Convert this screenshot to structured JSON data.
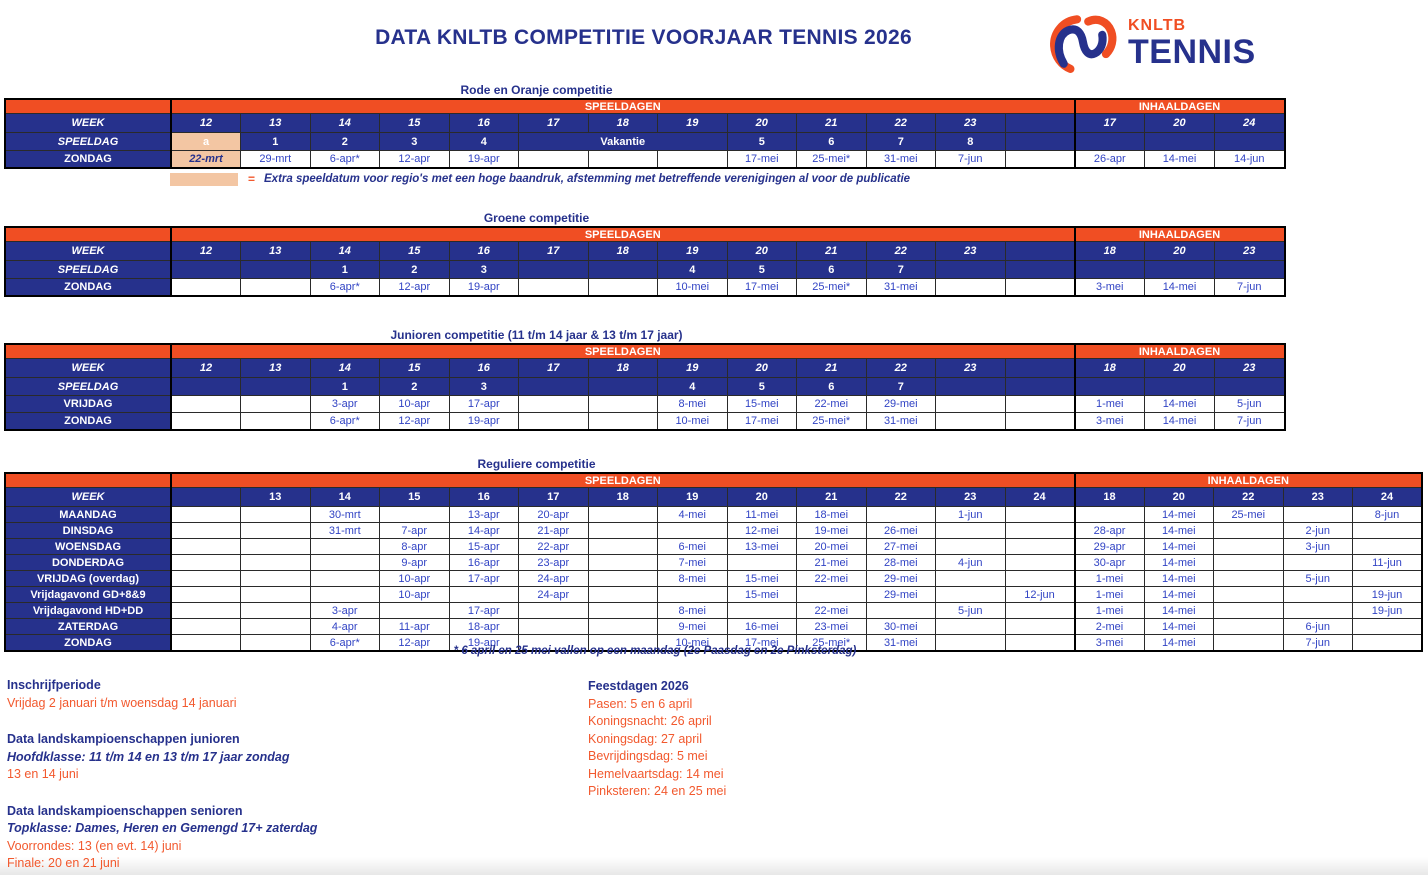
{
  "title": "DATA KNLTB COMPETITIE VOORJAAR TENNIS 2026",
  "logo": {
    "top": "KNLTB",
    "bottom": "TENNIS"
  },
  "colors": {
    "accent_orange": "#F04E23",
    "navy_blue": "#26318C",
    "date_blue": "#3143C4",
    "highlight_peach": "#F3C6A3",
    "footer_orange": "#F2592E"
  },
  "tables": [
    {
      "title": "Rode en Oranje competitie",
      "speeldagen_label": "SPEELDAGEN",
      "inhaaldagen_label": "INHAALDAGEN",
      "week_label": "WEEK",
      "week_italic": true,
      "weeks": [
        "12",
        "13",
        "14",
        "15",
        "16",
        "17",
        "18",
        "19",
        "20",
        "21",
        "22",
        "23",
        ""
      ],
      "inhaal_weeks": [
        "17",
        "20",
        "24"
      ],
      "speeldag_row": {
        "label": "SPEELDAG",
        "cells": [
          {
            "t": "a",
            "hl": true
          },
          "1",
          "2",
          "3",
          "4",
          {
            "t": "Vakantie",
            "span": 3
          },
          "5",
          "6",
          "7",
          "8",
          ""
        ],
        "inhaal": [
          "",
          "",
          ""
        ]
      },
      "day_rows": [
        {
          "label": "ZONDAG",
          "cells": [
            {
              "t": "22-mrt",
              "hl": true
            },
            "29-mrt",
            "6-apr*",
            "12-apr",
            "19-apr",
            "",
            "",
            "",
            "17-mei",
            "25-mei*",
            "31-mei",
            "7-jun",
            ""
          ],
          "inhaal": [
            "26-apr",
            "14-mei",
            "14-jun"
          ]
        }
      ],
      "legend": {
        "symbol": "=",
        "text": "Extra speeldatum voor regio's met een hoge baandruk, afstemming met betreffende verenigingen al voor de publicatie"
      }
    },
    {
      "title": "Groene competitie",
      "speeldagen_label": "SPEELDAGEN",
      "inhaaldagen_label": "INHAALDAGEN",
      "week_label": "WEEK",
      "week_italic": true,
      "weeks": [
        "12",
        "13",
        "14",
        "15",
        "16",
        "17",
        "18",
        "19",
        "20",
        "21",
        "22",
        "23",
        ""
      ],
      "inhaal_weeks": [
        "18",
        "20",
        "23"
      ],
      "speeldag_row": {
        "label": "SPEELDAG",
        "cells": [
          "",
          "",
          "1",
          "2",
          "3",
          "",
          "",
          "4",
          "5",
          "6",
          "7",
          "",
          ""
        ],
        "inhaal": [
          "",
          "",
          ""
        ]
      },
      "day_rows": [
        {
          "label": "ZONDAG",
          "cells": [
            "",
            "",
            "6-apr*",
            "12-apr",
            "19-apr",
            "",
            "",
            "10-mei",
            "17-mei",
            "25-mei*",
            "31-mei",
            "",
            ""
          ],
          "inhaal": [
            "3-mei",
            "14-mei",
            "7-jun"
          ]
        }
      ]
    },
    {
      "title": "Junioren competitie (11 t/m 14 jaar & 13 t/m 17 jaar)",
      "speeldagen_label": "SPEELDAGEN",
      "inhaaldagen_label": "INHAALDAGEN",
      "week_label": "WEEK",
      "week_italic": true,
      "weeks": [
        "12",
        "13",
        "14",
        "15",
        "16",
        "17",
        "18",
        "19",
        "20",
        "21",
        "22",
        "23",
        ""
      ],
      "inhaal_weeks": [
        "18",
        "20",
        "23"
      ],
      "speeldag_row": {
        "label": "SPEELDAG",
        "cells": [
          "",
          "",
          "1",
          "2",
          "3",
          "",
          "",
          "4",
          "5",
          "6",
          "7",
          "",
          ""
        ],
        "inhaal": [
          "",
          "",
          ""
        ]
      },
      "day_rows": [
        {
          "label": "VRIJDAG",
          "cells": [
            "",
            "",
            "3-apr",
            "10-apr",
            "17-apr",
            "",
            "",
            "8-mei",
            "15-mei",
            "22-mei",
            "29-mei",
            "",
            ""
          ],
          "inhaal": [
            "1-mei",
            "14-mei",
            "5-jun"
          ]
        },
        {
          "label": "ZONDAG",
          "cells": [
            "",
            "",
            "6-apr*",
            "12-apr",
            "19-apr",
            "",
            "",
            "10-mei",
            "17-mei",
            "25-mei*",
            "31-mei",
            "",
            ""
          ],
          "inhaal": [
            "3-mei",
            "14-mei",
            "7-jun"
          ]
        }
      ]
    },
    {
      "title": "Reguliere competitie",
      "speeldagen_label": "SPEELDAGEN",
      "inhaaldagen_label": "INHAALDAGEN",
      "week_label": "WEEK",
      "compact": true,
      "weeks": [
        "",
        "13",
        "14",
        "15",
        "16",
        "17",
        "18",
        "19",
        "20",
        "21",
        "22",
        "23",
        "24"
      ],
      "inhaal_weeks": [
        "18",
        "20",
        "22",
        "23",
        "24"
      ],
      "day_rows": [
        {
          "label": "MAANDAG",
          "cells": [
            "",
            "",
            "30-mrt",
            "",
            "13-apr",
            "20-apr",
            "",
            "4-mei",
            "11-mei",
            "18-mei",
            "",
            "1-jun",
            ""
          ],
          "inhaal": [
            "",
            "14-mei",
            "25-mei",
            "",
            "8-jun"
          ]
        },
        {
          "label": "DINSDAG",
          "cells": [
            "",
            "",
            "31-mrt",
            "7-apr",
            "14-apr",
            "21-apr",
            "",
            "",
            "12-mei",
            "19-mei",
            "26-mei",
            "",
            ""
          ],
          "inhaal": [
            "28-apr",
            "14-mei",
            "",
            "2-jun",
            ""
          ]
        },
        {
          "label": "WOENSDAG",
          "cells": [
            "",
            "",
            "",
            "8-apr",
            "15-apr",
            "22-apr",
            "",
            "6-mei",
            "13-mei",
            "20-mei",
            "27-mei",
            "",
            ""
          ],
          "inhaal": [
            "29-apr",
            "14-mei",
            "",
            "3-jun",
            ""
          ]
        },
        {
          "label": "DONDERDAG",
          "cells": [
            "",
            "",
            "",
            "9-apr",
            "16-apr",
            "23-apr",
            "",
            "7-mei",
            "",
            "21-mei",
            "28-mei",
            "4-jun",
            ""
          ],
          "inhaal": [
            "30-apr",
            "14-mei",
            "",
            "",
            "11-jun"
          ]
        },
        {
          "label": "VRIJDAG (overdag)",
          "cells": [
            "",
            "",
            "",
            "10-apr",
            "17-apr",
            "24-apr",
            "",
            "8-mei",
            "15-mei",
            "22-mei",
            "29-mei",
            "",
            ""
          ],
          "inhaal": [
            "1-mei",
            "14-mei",
            "",
            "5-jun",
            ""
          ]
        },
        {
          "label": "Vrijdagavond GD+8&9",
          "cells": [
            "",
            "",
            "",
            "10-apr",
            "",
            "24-apr",
            "",
            "",
            "15-mei",
            "",
            "29-mei",
            "",
            "12-jun"
          ],
          "inhaal": [
            "1-mei",
            "14-mei",
            "",
            "",
            "19-jun"
          ]
        },
        {
          "label": "Vrijdagavond HD+DD",
          "cells": [
            "",
            "",
            "3-apr",
            "",
            "17-apr",
            "",
            "",
            "8-mei",
            "",
            "22-mei",
            "",
            "5-jun",
            ""
          ],
          "inhaal": [
            "1-mei",
            "14-mei",
            "",
            "",
            "19-jun"
          ]
        },
        {
          "label": "ZATERDAG",
          "cells": [
            "",
            "",
            "4-apr",
            "11-apr",
            "18-apr",
            "",
            "",
            "9-mei",
            "16-mei",
            "23-mei",
            "30-mei",
            "",
            ""
          ],
          "inhaal": [
            "2-mei",
            "14-mei",
            "",
            "6-jun",
            ""
          ]
        },
        {
          "label": "ZONDAG",
          "cells": [
            "",
            "",
            "6-apr*",
            "12-apr",
            "19-apr",
            "",
            "",
            "10-mei",
            "17-mei",
            "25-mei*",
            "31-mei",
            "",
            ""
          ],
          "inhaal": [
            "3-mei",
            "14-mei",
            "",
            "7-jun",
            ""
          ]
        }
      ],
      "footnote": "* 6 april  en 25 mei vallen op een maandag (2e Paasdag en 2e Pinksterdag)"
    }
  ],
  "notes": {
    "sections": [
      {
        "heading": "Inschrijfperiode",
        "lines": [
          {
            "text": "Vrijdag 2 januari t/m woensdag 14 januari",
            "style": "orange"
          }
        ]
      },
      {
        "heading": "Data landskampioenschappen junioren",
        "lines": [
          {
            "text": "Hoofdklasse: 11 t/m 14 en 13 t/m 17 jaar zondag",
            "style": "blue-italic"
          },
          {
            "text": "13 en 14 juni",
            "style": "orange"
          }
        ]
      },
      {
        "heading": "Data landskampioenschappen senioren",
        "lines": [
          {
            "text": "Topklasse: Dames, Heren en Gemengd 17+ zaterdag",
            "style": "blue-italic"
          },
          {
            "text": "Voorrondes: 13 (en evt. 14) juni",
            "style": "orange"
          },
          {
            "text": "Finale: 20 en 21 juni",
            "style": "orange"
          }
        ]
      }
    ]
  },
  "holidays": {
    "heading": "Feestdagen 2026",
    "lines": [
      "Pasen: 5 en 6 april",
      "Koningsnacht: 26 april",
      "Koningsdag: 27 april",
      "Bevrijdingsdag: 5 mei",
      "Hemelvaartsdag: 14 mei",
      "Pinksteren: 24 en 25 mei"
    ]
  }
}
